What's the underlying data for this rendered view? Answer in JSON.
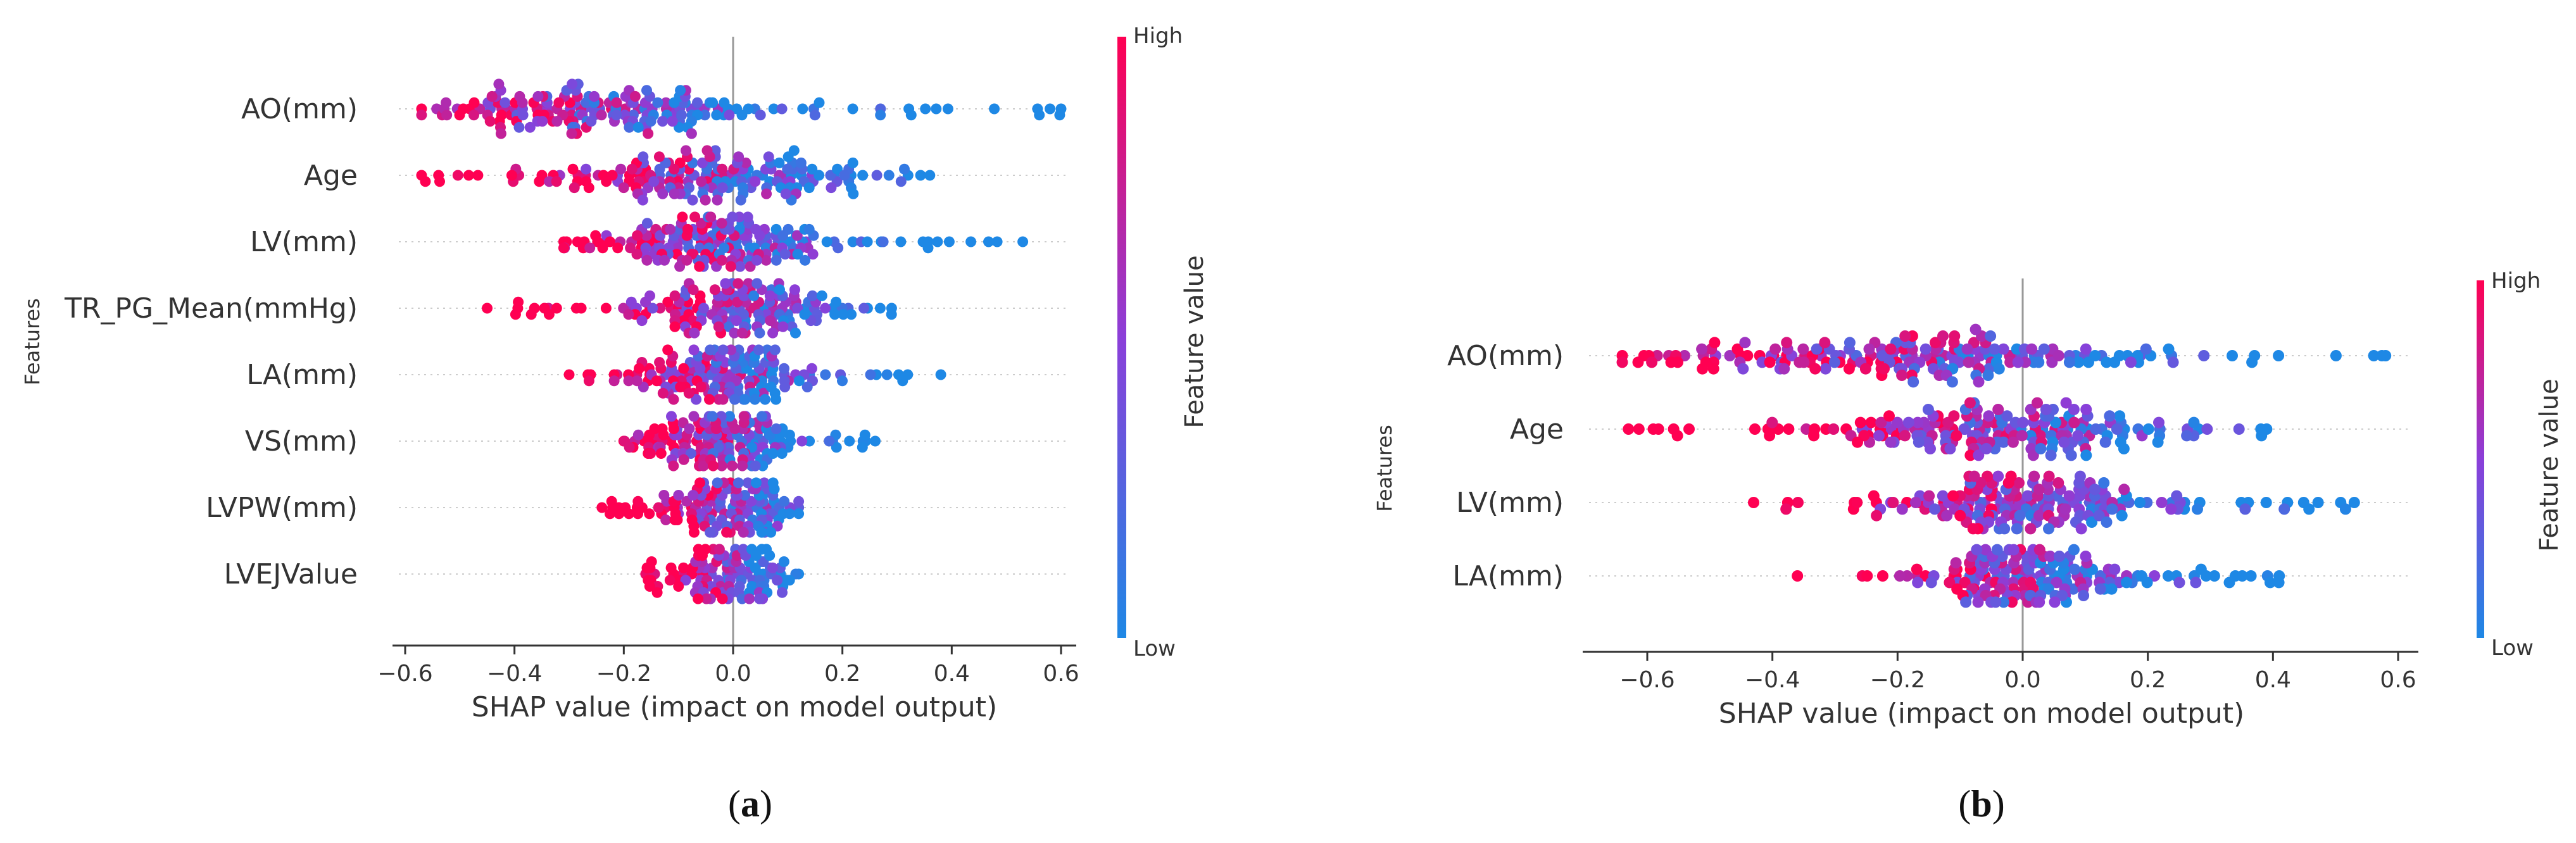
{
  "figure": {
    "captions": [
      "(a)",
      "(b)"
    ],
    "caption_letters": [
      "a",
      "b"
    ]
  },
  "colors": {
    "low": "#1e88e5",
    "mid": "#8b3fd9",
    "high": "#ff0052",
    "axis": "#333333",
    "grid": "#cccccc",
    "zero_line": "#999999"
  },
  "chart_data": [
    {
      "type": "scatter",
      "subtype": "shap_beeswarm",
      "xlabel": "SHAP value (impact on model output)",
      "ylabel": "Features",
      "colorbar_label": "Feature value",
      "colorbar_high": "High",
      "colorbar_low": "Low",
      "xlim": [
        -0.66,
        0.66
      ],
      "xticks": [
        -0.6,
        -0.4,
        -0.2,
        0.0,
        0.2,
        0.4,
        0.6
      ],
      "xtick_labels": [
        "−0.6",
        "−0.4",
        "−0.2",
        "0.0",
        "0.2",
        "0.4",
        "0.6"
      ],
      "features": [
        {
          "name": "AO(mm)",
          "min": -0.57,
          "max": 0.6,
          "mode": -0.25,
          "spread": 0.16
        },
        {
          "name": "Age",
          "min": -0.57,
          "max": 0.36,
          "mode": -0.05,
          "spread": 0.13
        },
        {
          "name": "LV(mm)",
          "min": -0.31,
          "max": 0.53,
          "mode": -0.02,
          "spread": 0.1
        },
        {
          "name": "TR_PG_Mean(mmHg)",
          "min": -0.45,
          "max": 0.29,
          "mode": 0.0,
          "spread": 0.09
        },
        {
          "name": "LA(mm)",
          "min": -0.3,
          "max": 0.38,
          "mode": -0.02,
          "spread": 0.07
        },
        {
          "name": "VS(mm)",
          "min": -0.2,
          "max": 0.26,
          "mode": -0.01,
          "spread": 0.06
        },
        {
          "name": "LVPW(mm)",
          "min": -0.24,
          "max": 0.12,
          "mode": 0.0,
          "spread": 0.05
        },
        {
          "name": "LVEJValue",
          "min": -0.16,
          "max": 0.12,
          "mode": -0.01,
          "spread": 0.04
        }
      ]
    },
    {
      "type": "scatter",
      "subtype": "shap_beeswarm",
      "xlabel": "SHAP value (impact on model output)",
      "ylabel": "Features",
      "colorbar_label": "Feature value",
      "colorbar_high": "High",
      "colorbar_low": "Low",
      "xlim": [
        -0.7,
        0.63
      ],
      "xticks": [
        -0.6,
        -0.4,
        -0.2,
        0.0,
        0.2,
        0.4,
        0.6
      ],
      "xtick_labels": [
        "−0.6",
        "−0.4",
        "−0.2",
        "0.0",
        "0.2",
        "0.4",
        "0.6"
      ],
      "features": [
        {
          "name": "AO(mm)",
          "min": -0.64,
          "max": 0.58,
          "mode": -0.15,
          "spread": 0.2
        },
        {
          "name": "Age",
          "min": -0.63,
          "max": 0.39,
          "mode": -0.02,
          "spread": 0.16
        },
        {
          "name": "LV(mm)",
          "min": -0.43,
          "max": 0.53,
          "mode": 0.0,
          "spread": 0.1
        },
        {
          "name": "LA(mm)",
          "min": -0.36,
          "max": 0.41,
          "mode": 0.0,
          "spread": 0.08
        }
      ]
    }
  ]
}
